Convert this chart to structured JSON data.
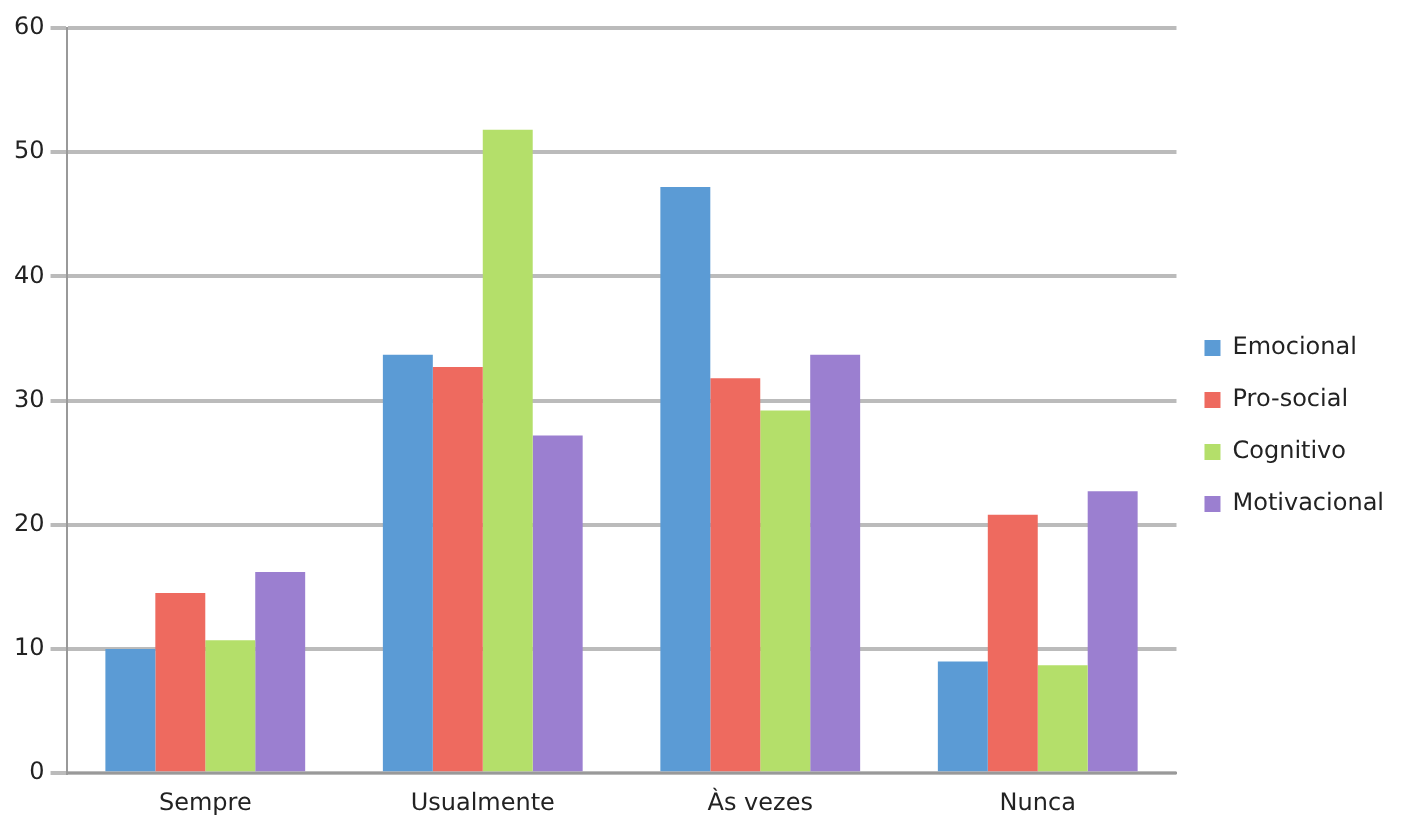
{
  "chart_data": {
    "type": "bar",
    "categories": [
      "Sempre",
      "Usualmente",
      "Às vezes",
      "Nunca"
    ],
    "series": [
      {
        "name": "Emocional",
        "color": "#5b9bd5",
        "values": [
          10,
          33.7,
          47.2,
          9
        ]
      },
      {
        "name": "Pro-social",
        "color": "#ee6a5f",
        "values": [
          14.5,
          32.7,
          31.8,
          20.8
        ]
      },
      {
        "name": "Cognitivo",
        "color": "#b4df6a",
        "values": [
          10.7,
          51.8,
          29.2,
          8.7
        ]
      },
      {
        "name": "Motivacional",
        "color": "#9b7fd0",
        "values": [
          16.2,
          27.2,
          33.7,
          22.7
        ]
      }
    ],
    "ylim": [
      0,
      60
    ],
    "yticks": [
      0,
      10,
      20,
      30,
      40,
      50,
      60
    ],
    "grid": "y",
    "legend": "right"
  }
}
